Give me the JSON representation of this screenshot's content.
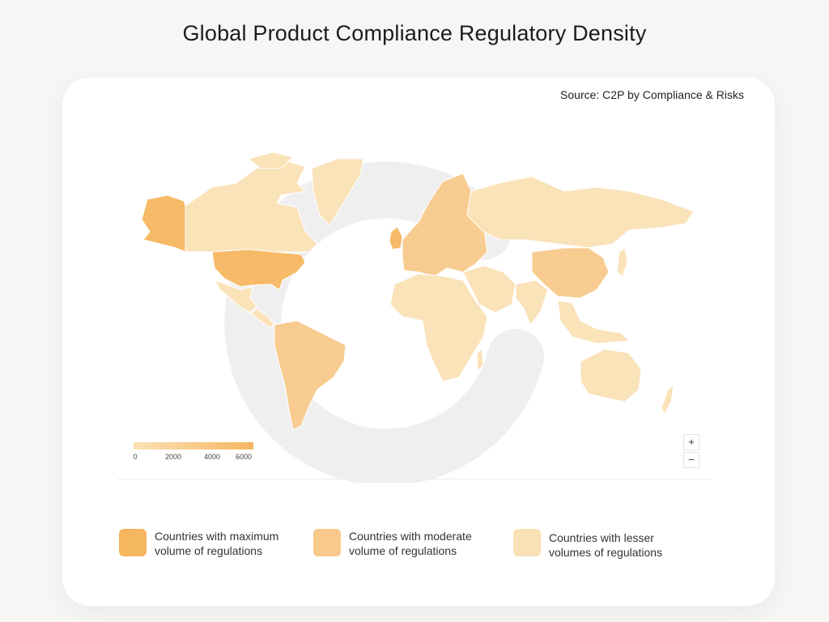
{
  "page": {
    "title": "Global Product Compliance Regulatory Density",
    "source": "Source: C2P by Compliance & Risks"
  },
  "colors": {
    "max": "#f5b660",
    "moderate": "#f8c98a",
    "lesser": "#fae0b5",
    "land_light": "#fbe1b9",
    "land_mid": "#f8cf95",
    "land_dark": "#f5b660",
    "watermark": "#eeeeee"
  },
  "scale": {
    "ticks": [
      "0",
      "2000",
      "4000",
      "6000"
    ],
    "min": 0,
    "max": 6000
  },
  "zoom": {
    "zoom_in_label": "+",
    "zoom_out_label": "−"
  },
  "legend": {
    "items": [
      {
        "line1": "Countries with maximum",
        "line2": "volume of regulations",
        "color": "#f5b660"
      },
      {
        "line1": "Countries with moderate",
        "line2": "volume of regulations",
        "color": "#f8c98a"
      },
      {
        "line1": "Countries with lesser",
        "line2": "volumes of regulations",
        "color": "#fae0b5"
      }
    ]
  },
  "regions": [
    {
      "name": "alaska",
      "level": "max"
    },
    {
      "name": "canada",
      "level": "lesser"
    },
    {
      "name": "greenland",
      "level": "lesser"
    },
    {
      "name": "usa",
      "level": "max"
    },
    {
      "name": "mexico",
      "level": "lesser"
    },
    {
      "name": "central-america",
      "level": "lesser"
    },
    {
      "name": "south-america",
      "level": "moderate"
    },
    {
      "name": "uk",
      "level": "max"
    },
    {
      "name": "europe",
      "level": "moderate"
    },
    {
      "name": "russia",
      "level": "lesser"
    },
    {
      "name": "middle-east",
      "level": "lesser"
    },
    {
      "name": "africa",
      "level": "lesser"
    },
    {
      "name": "china",
      "level": "moderate"
    },
    {
      "name": "india",
      "level": "lesser"
    },
    {
      "name": "south-east-asia",
      "level": "lesser"
    },
    {
      "name": "japan",
      "level": "lesser"
    },
    {
      "name": "australia",
      "level": "lesser"
    },
    {
      "name": "new-zealand",
      "level": "lesser"
    }
  ]
}
